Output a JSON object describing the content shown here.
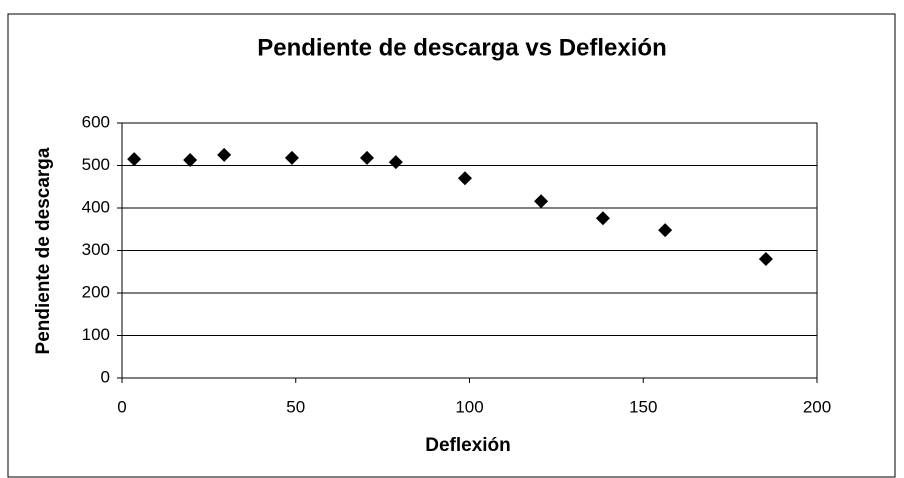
{
  "chart_data": {
    "type": "scatter",
    "title": "Pendiente de descarga vs Deflexión",
    "xlabel": "Deflexión",
    "ylabel": "Pendiente de descarga",
    "x": [
      3.5,
      19.6,
      29.4,
      48.9,
      70.5,
      78.8,
      98.7,
      120.6,
      138.4,
      156.3,
      185.3
    ],
    "values": [
      515,
      513,
      525,
      518,
      518,
      508,
      470,
      416,
      376,
      348,
      280
    ],
    "color": "#000000",
    "xlim": [
      0,
      200
    ],
    "xticks": [
      0,
      50,
      100,
      150,
      200
    ],
    "ylim": [
      0,
      600
    ],
    "yticks": [
      0,
      100,
      200,
      300,
      400,
      500,
      600
    ],
    "grid": true
  }
}
